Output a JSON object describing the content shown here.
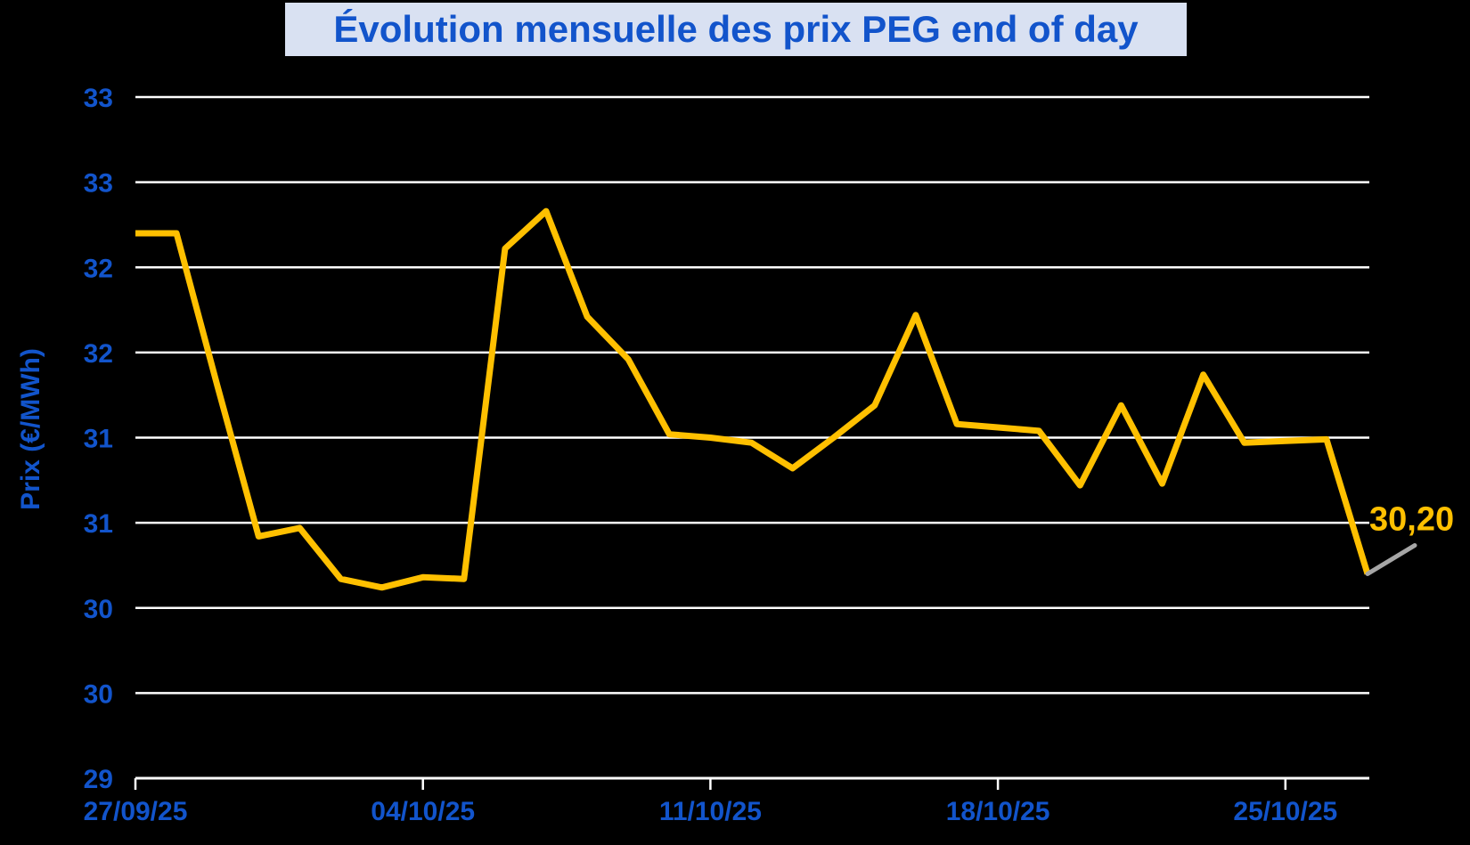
{
  "chart_data": {
    "type": "line",
    "title": "Évolution mensuelle des prix PEG end of day",
    "ylabel": "Prix (€/MWh)",
    "ylim": [
      29,
      33
    ],
    "ytick_step": 0.5,
    "ytick_labels": [
      "33",
      "33",
      "32",
      "32",
      "31",
      "31",
      "30",
      "30",
      "29"
    ],
    "xtick_labels": [
      "27/09/25",
      "04/10/25",
      "11/10/25",
      "18/10/25",
      "25/10/25"
    ],
    "xtick_days": [
      0,
      7,
      14,
      21,
      28
    ],
    "grid": true,
    "legend": "none",
    "series": [
      {
        "name": "PEG end of day",
        "color": "#FFC000",
        "dates": [
          "27/09/25",
          "28/09/25",
          "29/09/25",
          "30/09/25",
          "01/10/25",
          "02/10/25",
          "03/10/25",
          "04/10/25",
          "05/10/25",
          "06/10/25",
          "07/10/25",
          "08/10/25",
          "09/10/25",
          "10/10/25",
          "11/10/25",
          "12/10/25",
          "13/10/25",
          "14/10/25",
          "15/10/25",
          "16/10/25",
          "17/10/25",
          "18/10/25",
          "19/10/25",
          "20/10/25",
          "21/10/25",
          "22/10/25",
          "23/10/25",
          "24/10/25",
          "25/10/25",
          "26/10/25",
          "27/10/25"
        ],
        "values": [
          32.2,
          32.2,
          31.3,
          30.42,
          30.47,
          30.17,
          30.12,
          30.18,
          30.17,
          32.11,
          32.33,
          31.71,
          31.46,
          31.02,
          31.0,
          30.97,
          30.82,
          31.0,
          31.19,
          31.72,
          31.08,
          31.06,
          31.04,
          30.72,
          31.19,
          30.73,
          31.37,
          30.97,
          30.98,
          30.99,
          30.2
        ]
      }
    ],
    "end_label": "30,20",
    "colors": {
      "background": "#000000",
      "gridline": "#FFFFFF",
      "axis": "#FFFFFF",
      "line": "#FFC000",
      "end_label": "#FFC000",
      "leader_line": "#A6A6A6",
      "tick_text": "#1254CB",
      "title_text": "#1254CB",
      "title_background": "#D9E1F2"
    }
  }
}
